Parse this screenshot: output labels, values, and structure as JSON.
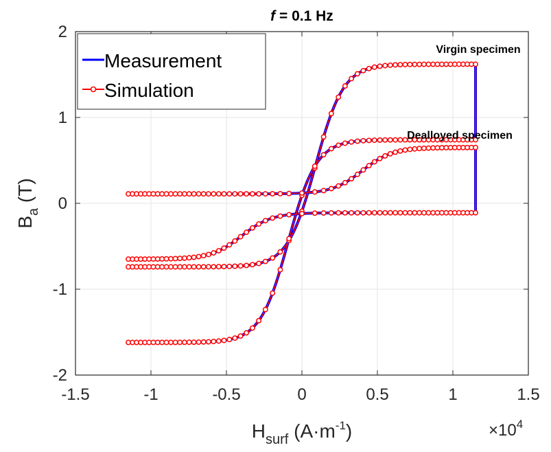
{
  "chart_data": {
    "type": "line",
    "title": {
      "italic": "f",
      "rest": " = 0.1 Hz"
    },
    "xlabel": {
      "main": "H",
      "sub": "surf",
      "unit_pre": " (A·m",
      "sup": "-1",
      "unit_post": ")"
    },
    "ylabel": {
      "main": "B",
      "sub": "a",
      "unit": " (T)"
    },
    "x_multiplier": {
      "base": "×10",
      "exp": "4"
    },
    "xlim": [
      -1.5,
      1.5
    ],
    "ylim": [
      -2,
      2
    ],
    "xticks": [
      -1.5,
      -1,
      -0.5,
      0,
      0.5,
      1,
      1.5
    ],
    "xtick_labels": [
      "-1.5",
      "-1",
      "-0.5",
      "0",
      "0.5",
      "1",
      "1.5"
    ],
    "yticks": [
      -2,
      -1,
      0,
      1,
      2
    ],
    "ytick_labels": [
      "-2",
      "-1",
      "0",
      "1",
      "2"
    ],
    "grid": true,
    "legend_position": "top-left",
    "legend": [
      "Measurement",
      "Simulation"
    ],
    "annotations": [
      "Virgin specimen",
      "Dealloyed specimen"
    ],
    "colors": {
      "measurement": "#0000ff",
      "simulation": "#ff0000",
      "grid": "#e6e6e6",
      "axes": "#262626"
    },
    "series": [
      {
        "name": "Measurement",
        "style": "solid-line",
        "loops": [
          {
            "specimen": "Virgin specimen",
            "Hmax": 1.15,
            "Bs": 1.62,
            "Hc": 0.09,
            "Br": 0.44,
            "Hw": 0.185,
            "tail": 0.06
          },
          {
            "specimen": "Dealloyed specimen",
            "Hmax": 1.15,
            "Bs": 0.65,
            "Hc": 0.4,
            "Br": 0.38,
            "Hw": 0.2,
            "tail": 0.05
          }
        ]
      },
      {
        "name": "Simulation",
        "style": "line-with-circle-markers",
        "loops": [
          {
            "specimen": "Virgin specimen",
            "Hmax": 1.15,
            "Bs": 1.62,
            "Hc": 0.09,
            "Br": 0.44,
            "Hw": 0.185,
            "tail": 0.06
          },
          {
            "specimen": "Dealloyed specimen",
            "Hmax": 1.15,
            "Bs": 0.65,
            "Hc": 0.4,
            "Br": 0.38,
            "Hw": 0.2,
            "tail": 0.05
          }
        ]
      }
    ]
  }
}
